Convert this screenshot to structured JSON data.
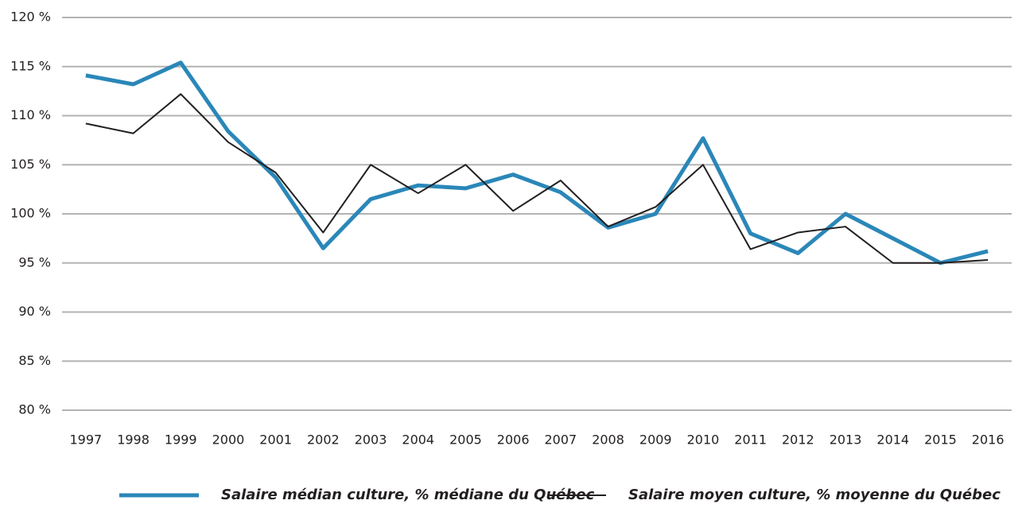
{
  "chart_data": {
    "type": "line",
    "categories": [
      "1997",
      "1998",
      "1999",
      "2000",
      "2001",
      "2002",
      "2003",
      "2004",
      "2005",
      "2006",
      "2007",
      "2008",
      "2009",
      "2010",
      "2011",
      "2012",
      "2013",
      "2014",
      "2015",
      "2016"
    ],
    "series": [
      {
        "name": "Salaire médian culture, % médiane du Québec",
        "color": "#2a87b8",
        "values": [
          114.1,
          113.2,
          115.4,
          108.4,
          103.7,
          96.5,
          101.5,
          102.9,
          102.6,
          104.0,
          102.2,
          98.6,
          100.0,
          107.7,
          98.0,
          96.0,
          100.0,
          97.5,
          95.0,
          96.2
        ]
      },
      {
        "name": "Salaire moyen culture, % moyenne du Québec",
        "color": "#231f20",
        "values": [
          109.2,
          108.2,
          112.2,
          107.3,
          104.2,
          98.1,
          105.0,
          102.1,
          105.0,
          100.3,
          103.4,
          98.7,
          100.7,
          105.0,
          96.4,
          98.1,
          98.7,
          95.0,
          95.0,
          95.3
        ]
      }
    ],
    "ylim": [
      80,
      120
    ],
    "yticks": [
      {
        "value": 80,
        "label": "80 %"
      },
      {
        "value": 85,
        "label": "85 %"
      },
      {
        "value": 90,
        "label": "90 %"
      },
      {
        "value": 95,
        "label": "95 %"
      },
      {
        "value": 100,
        "label": "100 %"
      },
      {
        "value": 105,
        "label": "105 %"
      },
      {
        "value": 110,
        "label": "110 %"
      },
      {
        "value": 115,
        "label": "115 %"
      },
      {
        "value": 120,
        "label": "120 %"
      }
    ],
    "grid": true,
    "legend": "bottom"
  }
}
